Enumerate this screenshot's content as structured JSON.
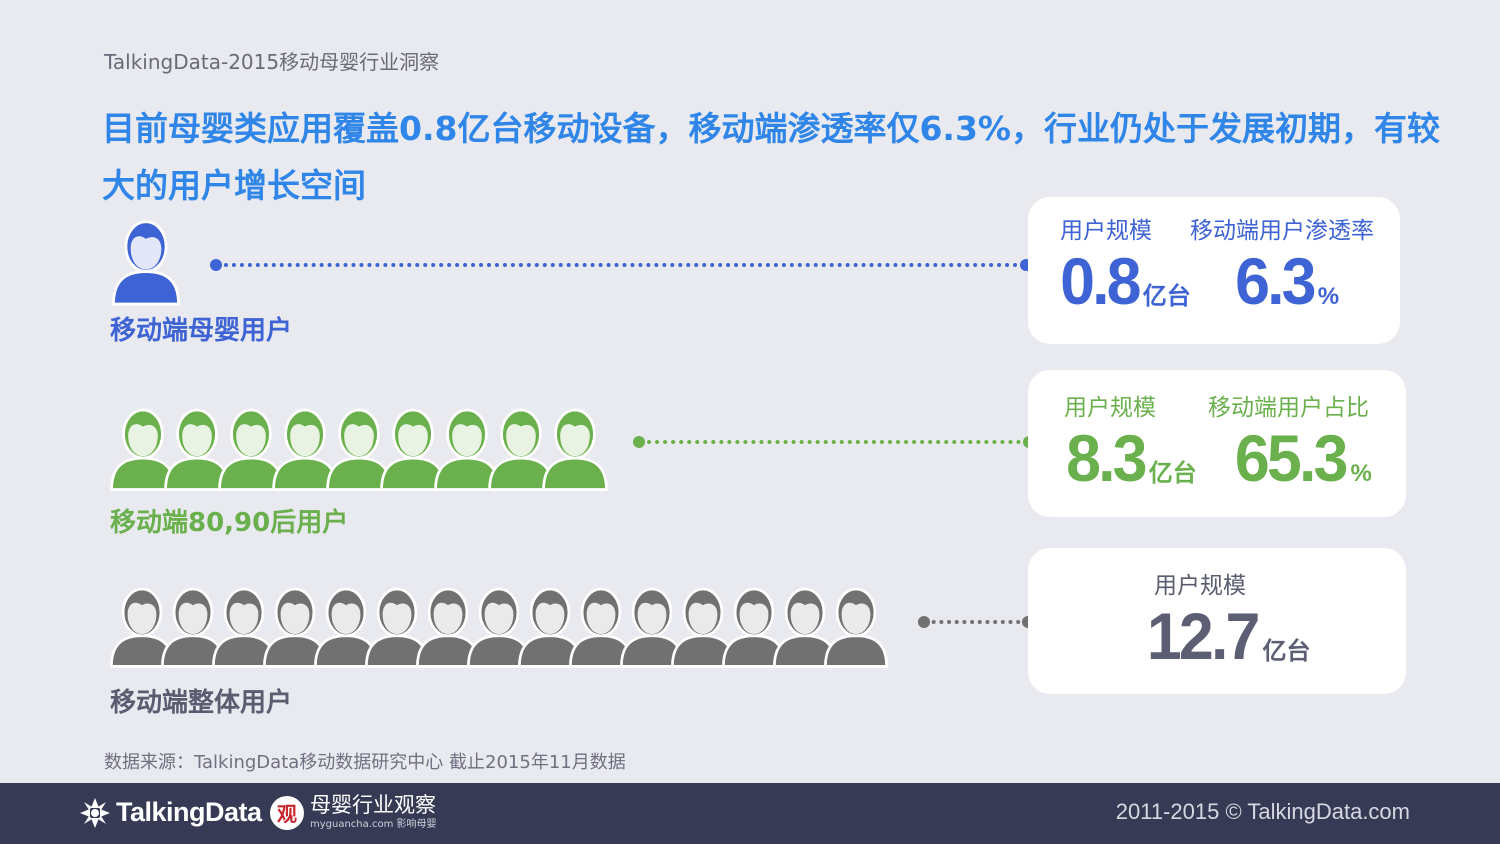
{
  "header": {
    "title": "TalkingData-2015移动母婴行业洞察"
  },
  "headline": "目前母婴类应用覆盖0.8亿台移动设备，移动端渗透率仅6.3%，行业仍处于发展初期，有较大的用户增长空间",
  "rows": [
    {
      "label": "移动端母婴用户",
      "color": "#3e63d4",
      "icon": "person-icon",
      "person_count": 1,
      "stats": [
        {
          "label": "用户规模",
          "value": "0.8",
          "unit": "亿台"
        },
        {
          "label": "移动端用户渗透率",
          "value": "6.3",
          "unit": "%"
        }
      ]
    },
    {
      "label": "移动端80,90后用户",
      "color": "#6ab04c",
      "icon": "person-icon",
      "person_count": 9,
      "stats": [
        {
          "label": "用户规模",
          "value": "8.3",
          "unit": "亿台"
        },
        {
          "label": "移动端用户占比",
          "value": "65.3",
          "unit": "%"
        }
      ]
    },
    {
      "label": "移动端整体用户",
      "color": "#717171",
      "label_color": "#5a5c70",
      "icon": "person-icon",
      "person_count": 15,
      "stats": [
        {
          "label": "用户规模",
          "value": "12.7",
          "unit": "亿台"
        }
      ]
    }
  ],
  "source": "数据来源：TalkingData移动数据研究中心 截止2015年11月数据",
  "footer": {
    "brand": "TalkingData",
    "partner_title": "母婴行业观察",
    "partner_sub": "myguancha.com 影响母婴",
    "partner_badge": "观",
    "copyright": "2011-2015 © TalkingData.com"
  }
}
